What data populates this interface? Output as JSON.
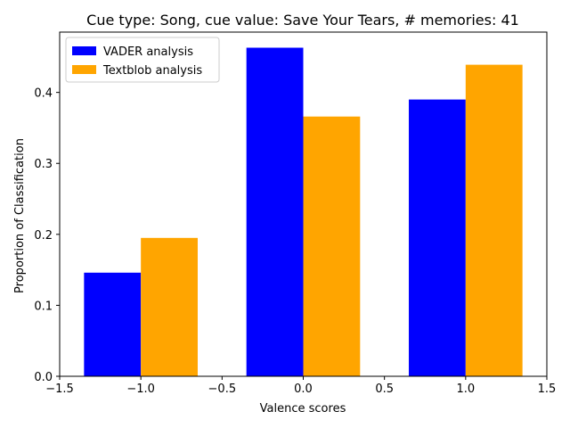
{
  "chart_data": {
    "type": "bar",
    "title": "Cue type: Song, cue value: Save Your Tears, # memories: 41",
    "xlabel": "Valence scores",
    "ylabel": "Proportion of Classification",
    "xlim": [
      -1.5,
      1.5
    ],
    "ylim": [
      0,
      0.485
    ],
    "x_ticks": [
      -1.5,
      -1.0,
      -0.5,
      0.0,
      0.5,
      1.0,
      1.5
    ],
    "x_tick_labels": [
      "−1.5",
      "−1.0",
      "−0.5",
      "0.0",
      "0.5",
      "1.0",
      "1.5"
    ],
    "y_ticks": [
      0.0,
      0.1,
      0.2,
      0.3,
      0.4
    ],
    "y_tick_labels": [
      "0.0",
      "0.1",
      "0.2",
      "0.3",
      "0.4"
    ],
    "categories": [
      -1,
      0,
      1
    ],
    "bar_width": 0.35,
    "grid": false,
    "legend_position": "upper-left",
    "series": [
      {
        "name": "VADER analysis",
        "color": "#0000ff",
        "values": [
          0.146,
          0.463,
          0.39
        ]
      },
      {
        "name": "Textblob analysis",
        "color": "#ffa500",
        "values": [
          0.195,
          0.366,
          0.439
        ]
      }
    ]
  }
}
